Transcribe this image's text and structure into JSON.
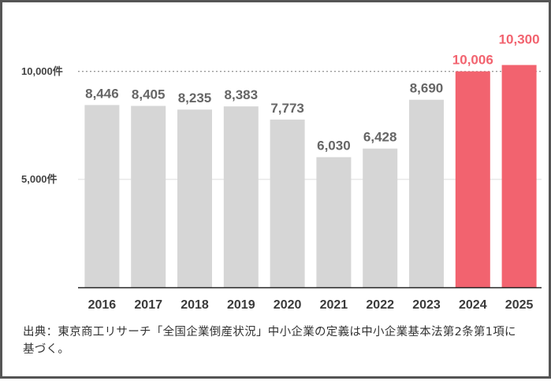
{
  "chart_data": {
    "type": "bar",
    "categories": [
      "2016",
      "2017",
      "2018",
      "2019",
      "2020",
      "2021",
      "2022",
      "2023",
      "2024",
      "2025"
    ],
    "values": [
      8446,
      8405,
      8235,
      8383,
      7773,
      6030,
      6428,
      8690,
      10006,
      10300
    ],
    "value_labels": [
      "8,446",
      "8,405",
      "8,235",
      "8,383",
      "7,773",
      "6,030",
      "6,428",
      "8,690",
      "10,006",
      "10,300"
    ],
    "highlighted": [
      "2024",
      "2025"
    ],
    "ylim": [
      0,
      10500
    ],
    "yticks": [
      {
        "value": 5000,
        "label": "5,000件",
        "style": "solid"
      },
      {
        "value": 10000,
        "label": "10,000件",
        "style": "dotted"
      }
    ],
    "colors": {
      "bar": "#d6d6d6",
      "highlight": "#f2636f",
      "label": "#666666",
      "highlight_label": "#f2636f",
      "axis": "#222222",
      "grid": "#dddddd"
    }
  },
  "source_note": "出典：東京商工リサーチ「全国企業倒産状況」中小企業の定義は中小企業基本法第2条第1項に基づく。"
}
